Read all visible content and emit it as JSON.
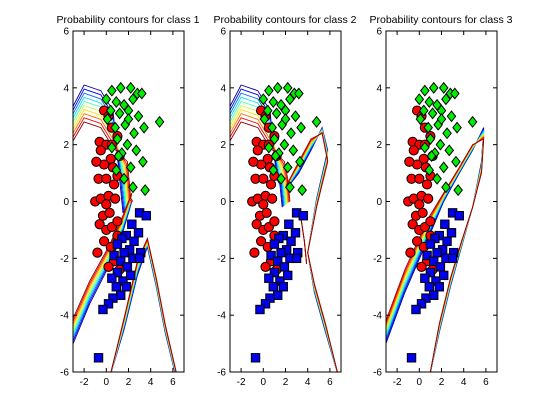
{
  "chart_data": [
    {
      "type": "scatter",
      "title": "Probability contours for class 1",
      "xlim": [
        -3,
        7
      ],
      "ylim": [
        -6,
        6
      ],
      "xticks": [
        -2,
        0,
        2,
        4,
        6
      ],
      "yticks": [
        -6,
        -4,
        -2,
        0,
        2,
        4,
        6
      ],
      "grid": false,
      "contour_focus_class": 1
    },
    {
      "type": "scatter",
      "title": "Probability contours for class 2",
      "xlim": [
        -3,
        7
      ],
      "ylim": [
        -6,
        6
      ],
      "xticks": [
        -2,
        0,
        2,
        4,
        6
      ],
      "yticks": [
        -6,
        -4,
        -2,
        0,
        2,
        4,
        6
      ],
      "grid": false,
      "contour_focus_class": 2
    },
    {
      "type": "scatter",
      "title": "Probability contours for class 3",
      "xlim": [
        -3,
        7
      ],
      "ylim": [
        -6,
        6
      ],
      "xticks": [
        -2,
        0,
        2,
        4,
        6
      ],
      "yticks": [
        -6,
        -4,
        -2,
        0,
        2,
        4,
        6
      ],
      "grid": false,
      "contour_focus_class": 3
    }
  ],
  "contour_colors": [
    "#00008f",
    "#0000ff",
    "#0070ff",
    "#00dfff",
    "#50ffaf",
    "#c0ff40",
    "#ffdf00",
    "#ff7000",
    "#ff0000",
    "#8f0000"
  ],
  "series": [
    {
      "marker": "circle",
      "color": "#ff0000",
      "points": [
        [
          -0.2,
          3.2
        ],
        [
          0.2,
          3.0
        ],
        [
          0.5,
          2.6
        ],
        [
          -0.6,
          2.1
        ],
        [
          0.0,
          2.0
        ],
        [
          0.5,
          2.0
        ],
        [
          1.0,
          2.3
        ],
        [
          -0.5,
          1.8
        ],
        [
          0.4,
          1.5
        ],
        [
          1.2,
          1.6
        ],
        [
          -0.2,
          1.3
        ],
        [
          0.6,
          1.2
        ],
        [
          -0.7,
          0.8
        ],
        [
          0.0,
          0.8
        ],
        [
          0.7,
          0.6
        ],
        [
          1.0,
          0.9
        ],
        [
          -1.0,
          0.0
        ],
        [
          -0.5,
          0.1
        ],
        [
          0.2,
          0.2
        ],
        [
          0.8,
          0.1
        ],
        [
          -0.3,
          -0.5
        ],
        [
          0.3,
          -0.4
        ],
        [
          -0.6,
          -0.8
        ],
        [
          0.0,
          -1.0
        ],
        [
          0.5,
          -0.9
        ],
        [
          1.0,
          -0.7
        ],
        [
          -0.2,
          -1.4
        ],
        [
          0.4,
          -1.6
        ],
        [
          -0.8,
          -1.8
        ],
        [
          0.7,
          -2.1
        ],
        [
          0.2,
          -2.3
        ],
        [
          1.2,
          -2.4
        ],
        [
          1.0,
          -1.2
        ],
        [
          0.0,
          -0.1
        ],
        [
          -0.9,
          1.4
        ]
      ]
    },
    {
      "marker": "diamond",
      "color": "#00ee00",
      "points": [
        [
          0.5,
          3.9
        ],
        [
          1.3,
          4.0
        ],
        [
          2.2,
          4.0
        ],
        [
          2.8,
          3.8
        ],
        [
          0.0,
          3.6
        ],
        [
          0.9,
          3.5
        ],
        [
          1.6,
          3.4
        ],
        [
          2.4,
          3.6
        ],
        [
          3.2,
          3.8
        ],
        [
          0.4,
          3.2
        ],
        [
          1.2,
          3.1
        ],
        [
          2.0,
          3.2
        ],
        [
          2.9,
          3.0
        ],
        [
          0.1,
          2.9
        ],
        [
          0.8,
          2.6
        ],
        [
          1.7,
          2.7
        ],
        [
          2.5,
          2.4
        ],
        [
          3.4,
          2.6
        ],
        [
          4.8,
          2.8
        ],
        [
          1.0,
          2.2
        ],
        [
          1.9,
          2.0
        ],
        [
          0.5,
          1.9
        ],
        [
          2.7,
          1.8
        ],
        [
          1.4,
          1.7
        ],
        [
          2.2,
          1.2
        ],
        [
          0.9,
          1.1
        ],
        [
          1.6,
          0.8
        ],
        [
          3.3,
          1.4
        ],
        [
          2.4,
          0.5
        ],
        [
          3.5,
          0.4
        ],
        [
          1.1,
          1.6
        ],
        [
          2.0,
          2.9
        ]
      ]
    },
    {
      "marker": "square",
      "color": "#0000ee",
      "points": [
        [
          3.0,
          -0.4
        ],
        [
          3.6,
          -0.5
        ],
        [
          2.3,
          -0.8
        ],
        [
          2.9,
          -1.1
        ],
        [
          1.8,
          -1.2
        ],
        [
          1.4,
          -1.3
        ],
        [
          2.5,
          -1.4
        ],
        [
          1.0,
          -1.5
        ],
        [
          2.1,
          -1.7
        ],
        [
          3.1,
          -1.8
        ],
        [
          1.6,
          -1.8
        ],
        [
          0.7,
          -1.9
        ],
        [
          2.4,
          -2.0
        ],
        [
          1.3,
          -2.1
        ],
        [
          3.0,
          -2.0
        ],
        [
          1.9,
          -2.3
        ],
        [
          1.0,
          -2.5
        ],
        [
          0.5,
          -2.7
        ],
        [
          1.5,
          -2.8
        ],
        [
          2.2,
          -2.6
        ],
        [
          0.9,
          -3.0
        ],
        [
          1.3,
          -3.3
        ],
        [
          0.6,
          -3.4
        ],
        [
          0.2,
          -3.6
        ],
        [
          -0.3,
          -3.8
        ],
        [
          1.8,
          -3.0
        ],
        [
          -0.7,
          -5.5
        ]
      ]
    }
  ]
}
